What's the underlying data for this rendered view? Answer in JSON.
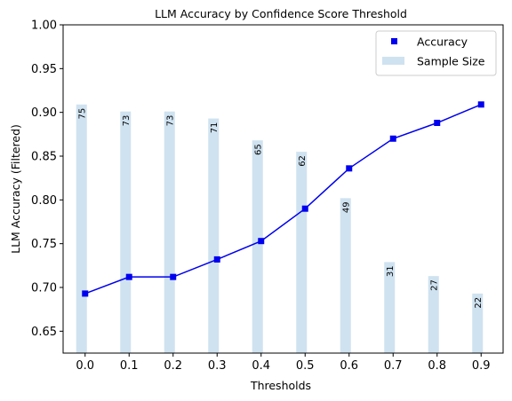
{
  "chart_data": {
    "type": "bar+line",
    "title": "LLM Accuracy by Confidence Score Threshold",
    "xlabel": "Thresholds",
    "ylabel": "LLM Accuracy (Filtered)",
    "x": [
      0.0,
      0.1,
      0.2,
      0.3,
      0.4,
      0.5,
      0.6,
      0.7,
      0.8,
      0.9
    ],
    "x_tick_labels": [
      "0.0",
      "0.1",
      "0.2",
      "0.3",
      "0.4",
      "0.5",
      "0.6",
      "0.7",
      "0.8",
      "0.9"
    ],
    "y_ticks": [
      0.65,
      0.7,
      0.75,
      0.8,
      0.85,
      0.9,
      0.95,
      1.0
    ],
    "y_tick_labels": [
      "0.65",
      "0.70",
      "0.75",
      "0.80",
      "0.85",
      "0.90",
      "0.95",
      "1.00"
    ],
    "ylim": [
      0.625,
      1.0
    ],
    "xlim": [
      -0.05,
      0.95
    ],
    "grid": false,
    "legend_position": "top-right",
    "series": [
      {
        "name": "Accuracy",
        "kind": "line-with-square-markers",
        "color": "#0000ee",
        "values": [
          0.693,
          0.712,
          0.712,
          0.732,
          0.753,
          0.79,
          0.836,
          0.87,
          0.888,
          0.909
        ]
      },
      {
        "name": "Sample Size",
        "kind": "bar",
        "color": "#cfe2f0",
        "bar_tops": [
          0.909,
          0.901,
          0.901,
          0.893,
          0.868,
          0.855,
          0.802,
          0.729,
          0.713,
          0.693
        ],
        "labels": [
          "75",
          "73",
          "73",
          "71",
          "65",
          "62",
          "49",
          "31",
          "27",
          "22"
        ]
      }
    ]
  }
}
